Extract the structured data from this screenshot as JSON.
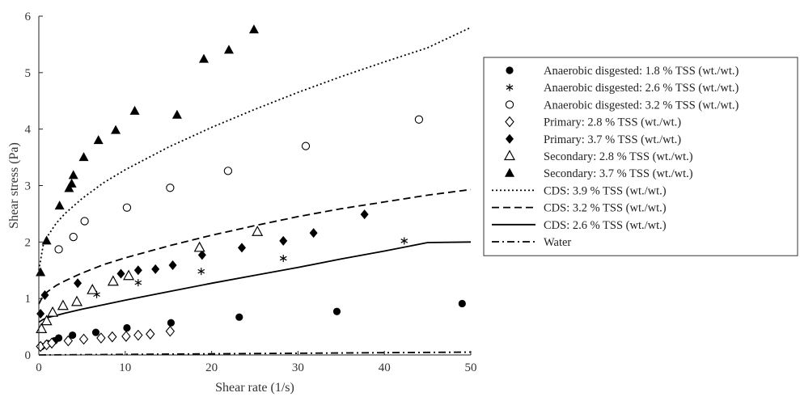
{
  "chart_data": {
    "type": "scatter",
    "xlabel": "Shear rate (1/s)",
    "ylabel": "Shear stress (Pa)",
    "xlim": [
      0,
      50
    ],
    "ylim": [
      0,
      6
    ],
    "xticks": [
      "0",
      "10",
      "20",
      "30",
      "40",
      "50"
    ],
    "yticks": [
      "0",
      "1",
      "2",
      "3",
      "4",
      "5",
      "6"
    ],
    "grid": false,
    "legend_position": "right",
    "series": [
      {
        "name": "Anaerobic disgested: 1.8 % TSS (wt./wt.)",
        "kind": "points",
        "marker": "filled-circle",
        "x": [
          0.3,
          1,
          1.8,
          2.3,
          3.9,
          6.6,
          10.2,
          15.3,
          23.2,
          34.5,
          49
        ],
        "y": [
          0.15,
          0.2,
          0.25,
          0.3,
          0.35,
          0.4,
          0.48,
          0.57,
          0.67,
          0.77,
          0.91
        ]
      },
      {
        "name": "Anaerobic disgested: 2.6 % TSS (wt./wt.)",
        "kind": "points",
        "marker": "star",
        "x": [
          6.7,
          11.5,
          18.8,
          28.3,
          42.3
        ],
        "y": [
          1.07,
          1.28,
          1.48,
          1.71,
          2.02
        ]
      },
      {
        "name": "Anaerobic disgested: 3.2 % TSS (wt./wt.)",
        "kind": "points",
        "marker": "open-circle",
        "x": [
          2.3,
          4,
          5.3,
          10.2,
          15.2,
          21.9,
          30.9,
          44
        ],
        "y": [
          1.87,
          2.09,
          2.37,
          2.61,
          2.96,
          3.26,
          3.7,
          4.17
        ]
      },
      {
        "name": "Primary: 2.8 % TSS (wt./wt.)",
        "kind": "points",
        "marker": "open-diamond",
        "x": [
          0.2,
          0.9,
          1.5,
          3.4,
          5.2,
          7.2,
          8.5,
          10.1,
          11.5,
          12.9,
          15.2
        ],
        "y": [
          0.15,
          0.18,
          0.21,
          0.25,
          0.28,
          0.3,
          0.32,
          0.33,
          0.35,
          0.37,
          0.42
        ]
      },
      {
        "name": "Primary: 3.7 % TSS (wt./wt.)",
        "kind": "points",
        "marker": "filled-diamond",
        "x": [
          0.2,
          0.7,
          4.5,
          9.5,
          11.5,
          13.5,
          15.5,
          18.9,
          23.5,
          28.3,
          31.8,
          37.7
        ],
        "y": [
          0.73,
          1.06,
          1.27,
          1.44,
          1.5,
          1.52,
          1.59,
          1.77,
          1.9,
          2.02,
          2.16,
          2.49
        ]
      },
      {
        "name": "Secondary: 2.8 % TSS (wt./wt.)",
        "kind": "points",
        "marker": "open-triangle",
        "x": [
          0.3,
          0.9,
          1.6,
          2.8,
          4.4,
          6.2,
          8.6,
          10.4,
          18.6,
          25.3
        ],
        "y": [
          0.46,
          0.6,
          0.75,
          0.87,
          0.94,
          1.15,
          1.3,
          1.4,
          1.9,
          2.18
        ]
      },
      {
        "name": "Secondary: 3.7 % TSS (wt./wt.)",
        "kind": "points",
        "marker": "filled-triangle",
        "x": [
          0.2,
          0.9,
          2.4,
          3.5,
          3.8,
          4,
          5.2,
          6.9,
          8.9,
          11.1,
          16,
          19.1,
          22,
          24.9
        ],
        "y": [
          1.46,
          2.02,
          2.64,
          2.95,
          3.03,
          3.18,
          3.5,
          3.8,
          3.98,
          4.32,
          4.25,
          5.24,
          5.4,
          5.76
        ]
      },
      {
        "name": "CDS: 3.9 % TSS (wt./wt.)",
        "kind": "line",
        "dash": "dotted",
        "x": [
          0,
          0.5,
          1,
          2,
          3,
          5,
          7.5,
          10,
          15,
          20,
          25,
          30,
          35,
          40,
          45,
          50
        ],
        "y": [
          1.5,
          1.94,
          2.1,
          2.33,
          2.5,
          2.77,
          3.05,
          3.28,
          3.68,
          4.03,
          4.35,
          4.65,
          4.93,
          5.19,
          5.44,
          5.8
        ]
      },
      {
        "name": "CDS: 3.2 % TSS (wt./wt.)",
        "kind": "line",
        "dash": "dashed",
        "x": [
          0,
          0.5,
          1,
          2,
          3,
          5,
          7.5,
          10,
          15,
          20,
          25,
          30,
          35,
          40,
          45,
          50
        ],
        "y": [
          0.9,
          1.05,
          1.12,
          1.23,
          1.31,
          1.45,
          1.6,
          1.72,
          1.93,
          2.12,
          2.29,
          2.45,
          2.59,
          2.71,
          2.83,
          2.93
        ]
      },
      {
        "name": "CDS: 2.6 % TSS (wt./wt.)",
        "kind": "line",
        "dash": "solid",
        "x": [
          0,
          0.5,
          1,
          2,
          3,
          5,
          7.5,
          10,
          15,
          20,
          25,
          30,
          35,
          40,
          45,
          50
        ],
        "y": [
          0.58,
          0.63,
          0.66,
          0.7,
          0.74,
          0.81,
          0.89,
          0.97,
          1.12,
          1.27,
          1.41,
          1.55,
          1.7,
          1.84,
          1.99,
          2.0
        ]
      },
      {
        "name": "Water",
        "kind": "line",
        "dash": "dashdot",
        "x": [
          0,
          50
        ],
        "y": [
          0.0,
          0.05
        ]
      }
    ]
  }
}
